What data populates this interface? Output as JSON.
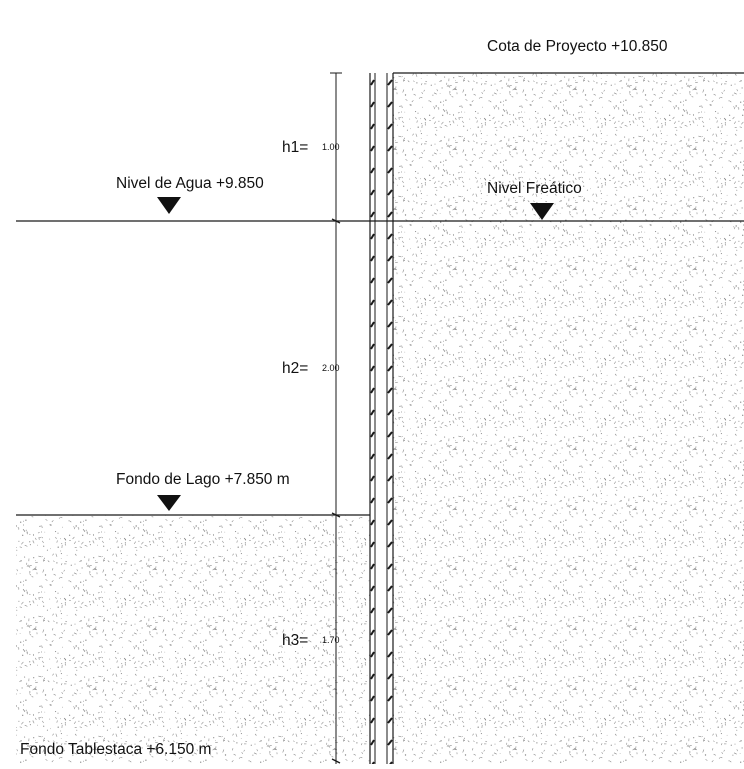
{
  "labels": {
    "cota_proyecto": "Cota de Proyecto   +10.850",
    "nivel_agua": "Nivel  de Agua    +9.850",
    "nivel_freatico": "Nivel  Freático",
    "fondo_lago": "Fondo de Lago   +7.850 m",
    "fondo_tablestaca": "Fondo Tablestaca  +6.150 m"
  },
  "dimensions": {
    "h1": {
      "label": "h1=",
      "value": "1.00"
    },
    "h2": {
      "label": "h2=",
      "value": "2.00"
    },
    "h3": {
      "label": "h3=",
      "value": "1.70"
    }
  },
  "colors": {
    "line": "#1a1a1a",
    "soil_dot": "#8a8a8a",
    "background": "#ffffff"
  }
}
